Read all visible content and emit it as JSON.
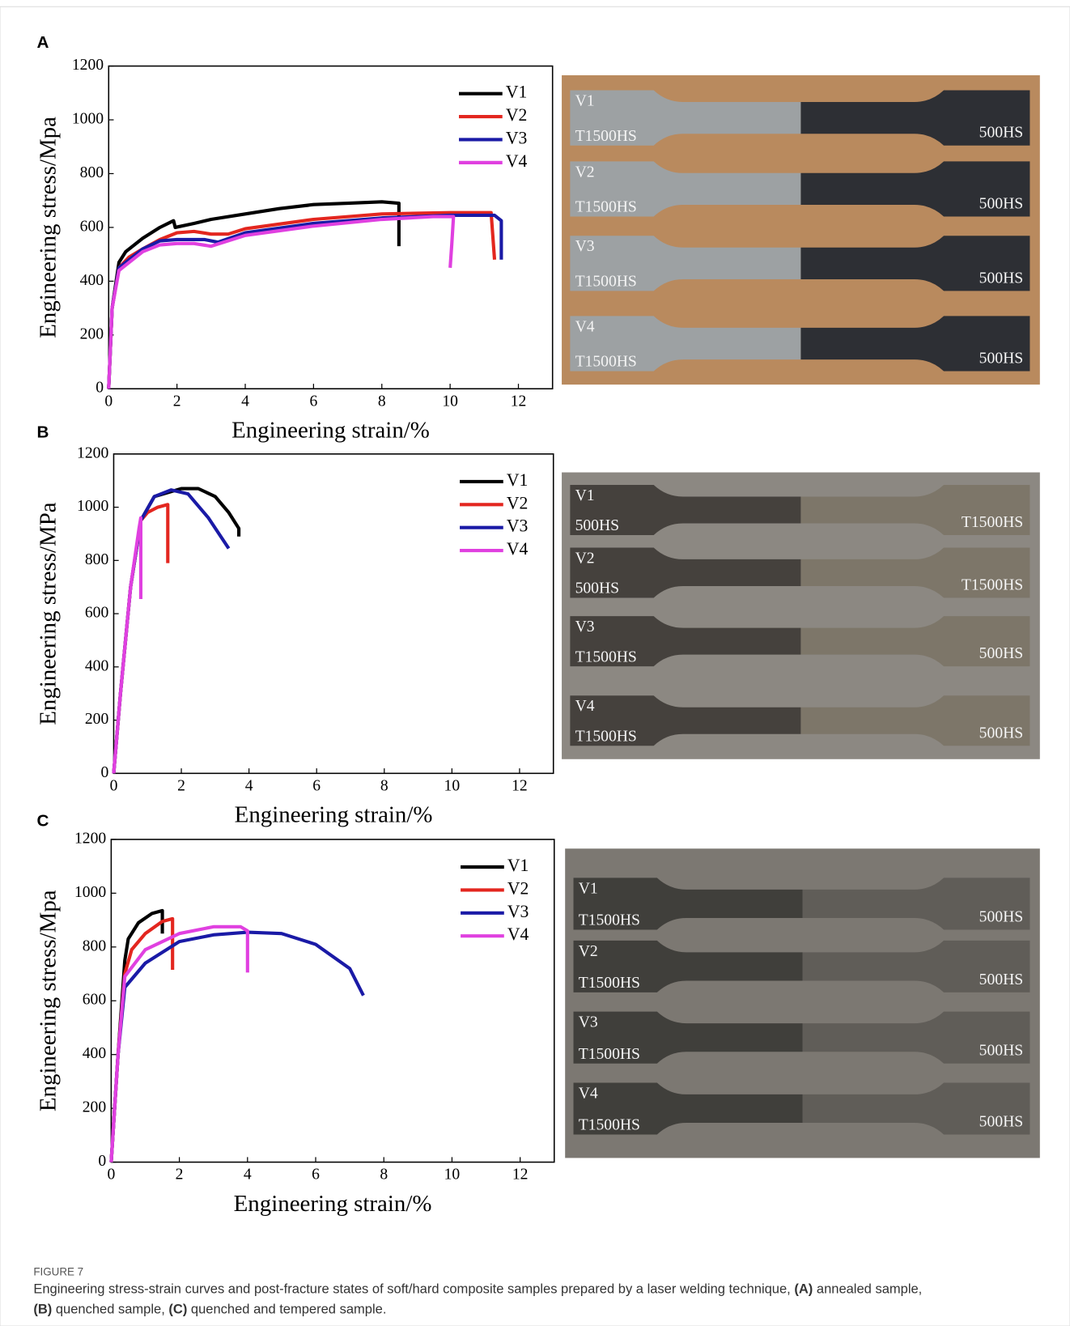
{
  "panel_labels": [
    "A",
    "B",
    "C"
  ],
  "chart_data": [
    {
      "type": "line",
      "xlabel": "Engineering strain/%",
      "ylabel": "Engineering stress/Mpa",
      "xlim": [
        0,
        13
      ],
      "ylim": [
        0,
        1200
      ],
      "xticks": [
        0,
        2,
        4,
        6,
        8,
        10,
        12
      ],
      "yticks": [
        0,
        200,
        400,
        600,
        800,
        1000,
        1200
      ],
      "grid": false,
      "legend": "upper right",
      "series": [
        {
          "name": "V1",
          "color": "#000000",
          "x": [
            0,
            0.1,
            0.3,
            0.5,
            1,
            1.5,
            1.9,
            1.95,
            2.5,
            3,
            4,
            5,
            6,
            7,
            8,
            8.5,
            8.5
          ],
          "values": [
            0,
            300,
            470,
            510,
            560,
            600,
            625,
            600,
            615,
            630,
            650,
            670,
            685,
            690,
            695,
            690,
            530
          ]
        },
        {
          "name": "V2",
          "color": "#e3261f",
          "x": [
            0,
            0.1,
            0.3,
            0.6,
            1,
            1.5,
            2,
            2.5,
            3,
            3.5,
            4,
            6,
            8,
            10,
            11.2,
            11.3
          ],
          "values": [
            0,
            300,
            450,
            490,
            520,
            555,
            580,
            585,
            575,
            575,
            595,
            630,
            650,
            655,
            655,
            480
          ]
        },
        {
          "name": "V3",
          "color": "#1a1aa6",
          "x": [
            0,
            0.1,
            0.3,
            0.6,
            1,
            1.5,
            2,
            2.8,
            3.2,
            4,
            6,
            8,
            10,
            11.3,
            11.5,
            11.5
          ],
          "values": [
            0,
            300,
            450,
            480,
            520,
            550,
            555,
            555,
            545,
            580,
            615,
            635,
            645,
            645,
            625,
            480
          ]
        },
        {
          "name": "V4",
          "color": "#e040e0",
          "x": [
            0,
            0.1,
            0.3,
            0.6,
            1,
            1.5,
            2,
            2.5,
            3,
            4,
            6,
            8,
            9.5,
            10.1,
            10.05,
            10
          ],
          "values": [
            0,
            300,
            440,
            470,
            510,
            535,
            540,
            540,
            530,
            570,
            605,
            630,
            640,
            640,
            540,
            450
          ]
        }
      ]
    },
    {
      "type": "line",
      "xlabel": "Engineering strain/%",
      "ylabel": "Engineering stress/MPa",
      "xlim": [
        0,
        13
      ],
      "ylim": [
        0,
        1200
      ],
      "xticks": [
        0,
        2,
        4,
        6,
        8,
        10,
        12
      ],
      "yticks": [
        0,
        200,
        400,
        600,
        800,
        1000,
        1200
      ],
      "grid": false,
      "legend": "upper right",
      "series": [
        {
          "name": "V1",
          "color": "#000000",
          "x": [
            0,
            0.2,
            0.5,
            0.8,
            1.2,
            2,
            2.5,
            3,
            3.4,
            3.7,
            3.7
          ],
          "values": [
            0,
            300,
            700,
            950,
            1040,
            1070,
            1070,
            1040,
            980,
            920,
            890
          ]
        },
        {
          "name": "V2",
          "color": "#e3261f",
          "x": [
            0,
            0.2,
            0.5,
            0.8,
            1,
            1.3,
            1.6,
            1.6
          ],
          "values": [
            0,
            300,
            700,
            950,
            980,
            1000,
            1010,
            790
          ]
        },
        {
          "name": "V3",
          "color": "#1a1aa6",
          "x": [
            0,
            0.2,
            0.5,
            0.8,
            1.2,
            1.7,
            2.2,
            2.8,
            3.4
          ],
          "values": [
            0,
            300,
            700,
            950,
            1040,
            1065,
            1050,
            960,
            845
          ]
        },
        {
          "name": "V4",
          "color": "#e040e0",
          "x": [
            0,
            0.2,
            0.5,
            0.75,
            0.8,
            0.8
          ],
          "values": [
            0,
            300,
            700,
            920,
            960,
            655
          ]
        }
      ]
    },
    {
      "type": "line",
      "xlabel": "Engineering strain/%",
      "ylabel": "Engineering stress/Mpa",
      "xlim": [
        0,
        13
      ],
      "ylim": [
        0,
        1200
      ],
      "xticks": [
        0,
        2,
        4,
        6,
        8,
        10,
        12
      ],
      "yticks": [
        0,
        200,
        400,
        600,
        800,
        1000,
        1200
      ],
      "grid": false,
      "legend": "upper right",
      "series": [
        {
          "name": "V1",
          "color": "#000000",
          "x": [
            0,
            0.2,
            0.4,
            0.5,
            0.8,
            1.2,
            1.5,
            1.5
          ],
          "values": [
            0,
            400,
            750,
            830,
            890,
            925,
            935,
            850
          ]
        },
        {
          "name": "V2",
          "color": "#e3261f",
          "x": [
            0,
            0.2,
            0.4,
            0.6,
            1,
            1.5,
            1.8,
            1.8
          ],
          "values": [
            0,
            400,
            700,
            790,
            850,
            895,
            905,
            715
          ]
        },
        {
          "name": "V3",
          "color": "#1a1aa6",
          "x": [
            0,
            0.2,
            0.4,
            1,
            2,
            3,
            4,
            5,
            6,
            7,
            7.4
          ],
          "values": [
            0,
            400,
            650,
            740,
            820,
            845,
            855,
            850,
            810,
            720,
            620
          ]
        },
        {
          "name": "V4",
          "color": "#e040e0",
          "x": [
            0,
            0.2,
            0.4,
            1,
            2,
            3,
            3.8,
            4,
            4
          ],
          "values": [
            0,
            400,
            690,
            790,
            850,
            875,
            875,
            860,
            705
          ]
        }
      ]
    }
  ],
  "photos": [
    {
      "rows": [
        [
          "V1",
          "T1500HS",
          "500HS"
        ],
        [
          "V2",
          "T1500HS",
          "500HS"
        ],
        [
          "V3",
          "T1500HS",
          "500HS"
        ],
        [
          "V4",
          "T1500HS",
          "500HS"
        ]
      ]
    },
    {
      "rows": [
        [
          "V1",
          "500HS",
          "T1500HS"
        ],
        [
          "V2",
          "500HS",
          "T1500HS"
        ],
        [
          "V3",
          "T1500HS",
          "500HS"
        ],
        [
          "V4",
          "T1500HS",
          "500HS"
        ]
      ]
    },
    {
      "rows": [
        [
          "V1",
          "T1500HS",
          "500HS"
        ],
        [
          "V2",
          "T1500HS",
          "500HS"
        ],
        [
          "V3",
          "T1500HS",
          "500HS"
        ],
        [
          "V4",
          "T1500HS",
          "500HS"
        ]
      ]
    }
  ],
  "figure_label": "FIGURE 7",
  "caption": [
    "Engineering stress-strain curves and post-fracture states of soft/hard composite samples prepared by a laser welding technique, ",
    "(A)",
    " annealed sample,",
    "(B)",
    " quenched sample, ",
    "(C)",
    " quenched and tempered sample."
  ]
}
